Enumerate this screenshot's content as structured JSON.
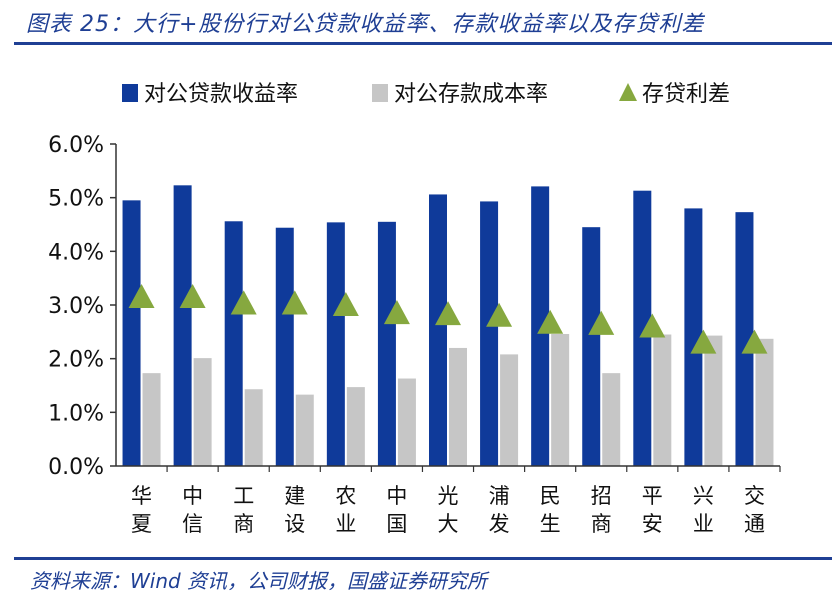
{
  "header": {
    "title": "图表 25：大行+股份行对公贷款收益率、存款收益率以及存贷利差"
  },
  "footer": {
    "source": "资料来源：Wind 资讯，公司财报，国盛证券研究所"
  },
  "colors": {
    "accent": "#1f3f94",
    "loan_bar": "#0f3a9a",
    "deposit_bar": "#c6c6c6",
    "spread_marker": "#86a83f"
  },
  "chart_data": {
    "type": "bar",
    "categories": [
      "华夏",
      "中信",
      "工商",
      "建设",
      "农业",
      "中国",
      "光大",
      "浦发",
      "民生",
      "招商",
      "平安",
      "兴业",
      "交通"
    ],
    "series": [
      {
        "name": "对公贷款收益率",
        "kind": "bar",
        "values": [
          4.95,
          5.23,
          4.56,
          4.44,
          4.54,
          4.55,
          5.06,
          4.93,
          5.21,
          4.45,
          5.13,
          4.8,
          4.73
        ]
      },
      {
        "name": "对公存款成本率",
        "kind": "bar",
        "values": [
          1.73,
          2.01,
          1.43,
          1.33,
          1.47,
          1.63,
          2.2,
          2.08,
          2.46,
          1.73,
          2.45,
          2.43,
          2.37
        ]
      },
      {
        "name": "存贷利差",
        "kind": "marker",
        "values": [
          3.15,
          3.15,
          3.03,
          3.03,
          3.0,
          2.85,
          2.83,
          2.8,
          2.67,
          2.65,
          2.6,
          2.3,
          2.3
        ]
      }
    ],
    "yticks": [
      "0.0%",
      "1.0%",
      "2.0%",
      "3.0%",
      "4.0%",
      "5.0%",
      "6.0%"
    ],
    "ylim": [
      0,
      6
    ],
    "ylabel": "",
    "xlabel": "",
    "legend_position": "top",
    "grid": false
  }
}
